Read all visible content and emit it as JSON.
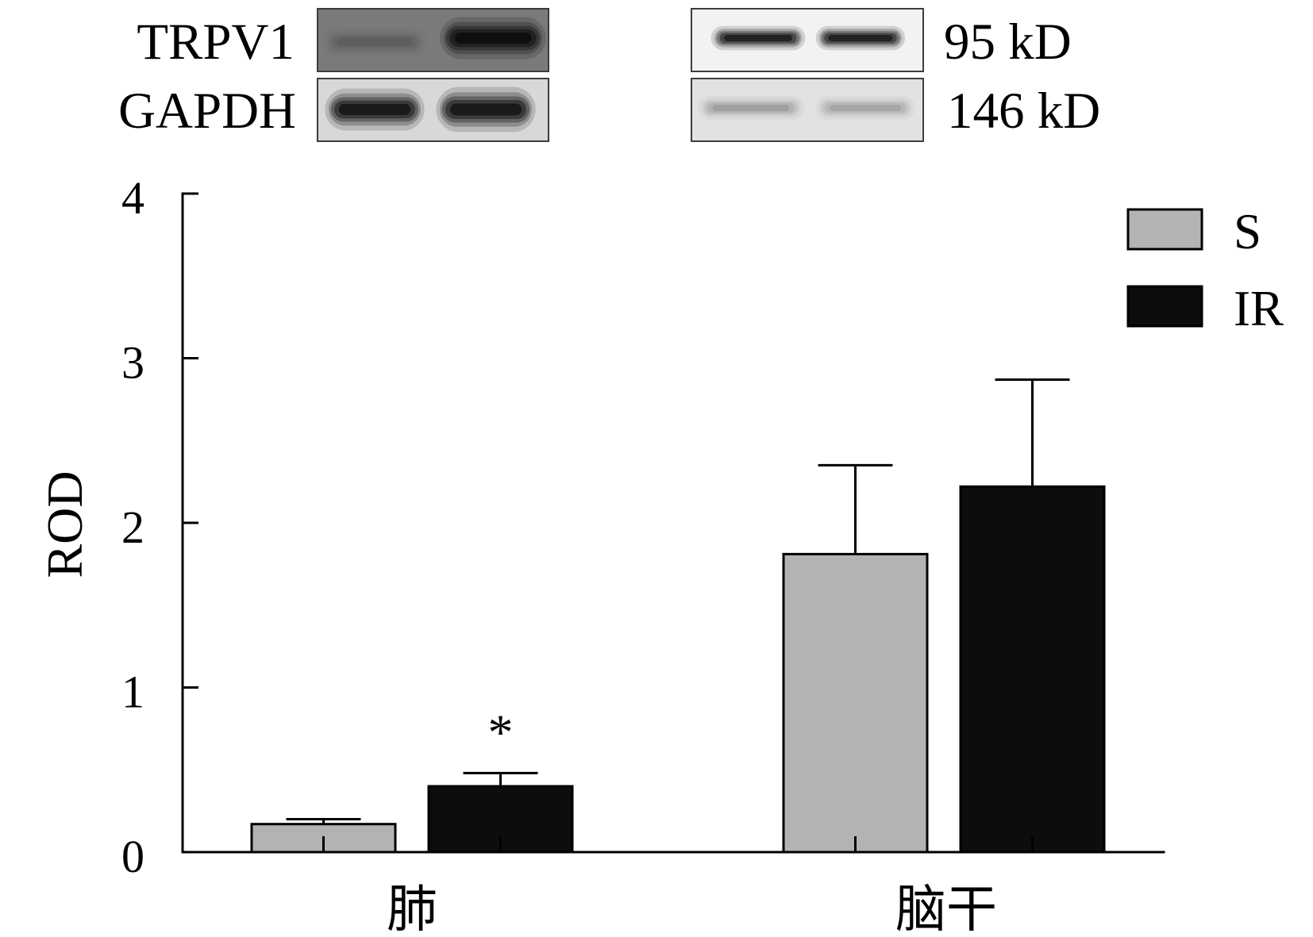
{
  "blots": {
    "rows": [
      {
        "protein": "TRPV1",
        "weight": "95 kD"
      },
      {
        "protein": "GAPDH",
        "weight": "146 kD"
      }
    ]
  },
  "chart_data": {
    "type": "bar",
    "categories": [
      "肺",
      "脑干"
    ],
    "series": [
      {
        "name": "S",
        "values": [
          0.17,
          1.81
        ],
        "error": [
          0.03,
          0.54
        ],
        "color": "#b3b3b3"
      },
      {
        "name": "IR",
        "values": [
          0.4,
          2.22
        ],
        "error": [
          0.08,
          0.65
        ],
        "color": "#0d0d0d"
      }
    ],
    "ylabel": "ROD",
    "ylim": [
      0,
      4
    ],
    "yticks": [
      0,
      1,
      2,
      3,
      4
    ],
    "annotations": [
      {
        "text": "*",
        "category": "肺",
        "series": "IR"
      }
    ],
    "legend_position": "top-right",
    "grid": false
  }
}
